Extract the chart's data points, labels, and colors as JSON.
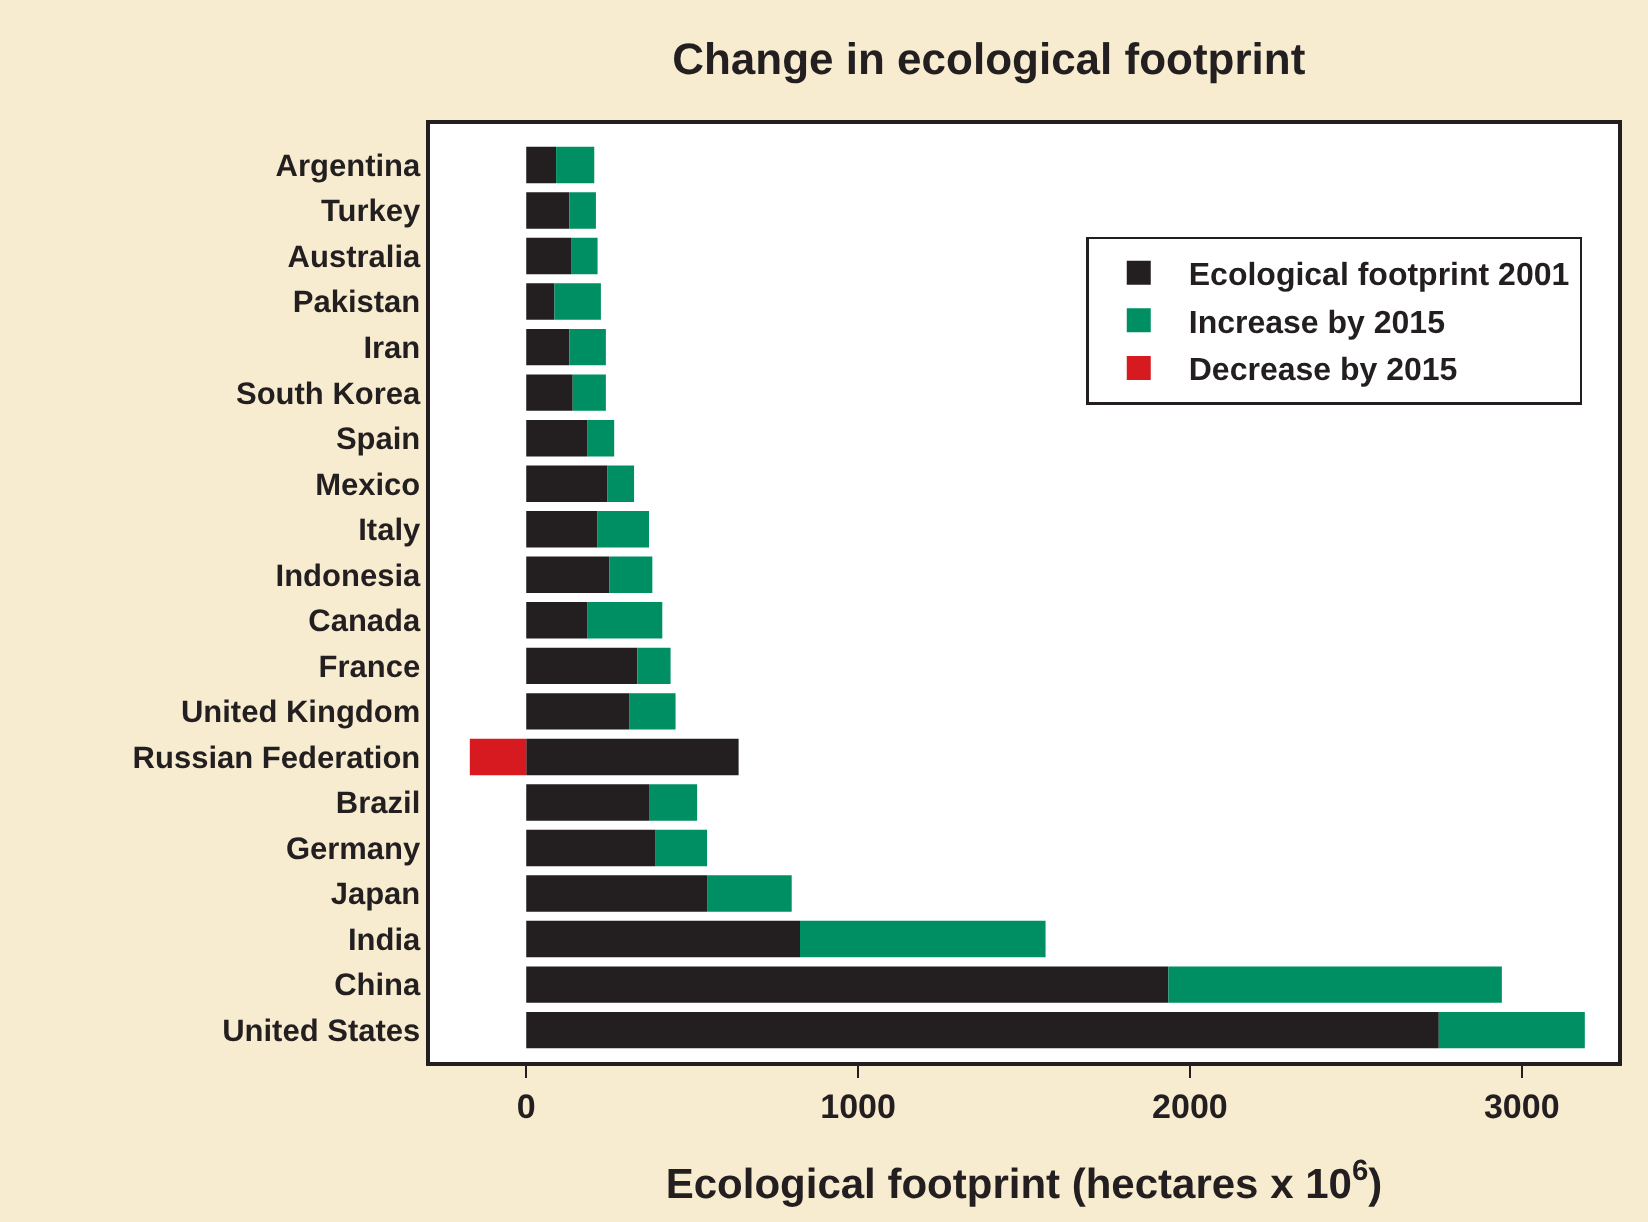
{
  "chart_data": {
    "type": "bar",
    "orientation": "horizontal",
    "stacked": true,
    "title": "Change in ecological footprint",
    "xlabel": "Ecological footprint (hectares x 10$^{6}$)",
    "categories": [
      "Argentina",
      "Turkey",
      "Australia",
      "Pakistan",
      "Iran",
      "South Korea",
      "Spain",
      "Mexico",
      "Italy",
      "Indonesia",
      "Canada",
      "France",
      "United Kingdom",
      "Russian Federation",
      "Brazil",
      "Germany",
      "Japan",
      "India",
      "China",
      "United States"
    ],
    "series": [
      {
        "name": "Ecological footprint 2001",
        "color": "#231f20",
        "values": [
          90,
          130,
          135,
          85,
          130,
          140,
          185,
          245,
          215,
          250,
          185,
          335,
          310,
          640,
          370,
          390,
          545,
          825,
          1935,
          2750
        ]
      },
      {
        "name": "Increase by 2015",
        "color": "#008f62",
        "values": [
          115,
          80,
          80,
          140,
          110,
          100,
          80,
          80,
          155,
          130,
          225,
          100,
          140,
          null,
          145,
          155,
          255,
          740,
          1005,
          440
        ]
      },
      {
        "name": "Decrease by 2015",
        "color": "#d71920",
        "values": [
          null,
          null,
          null,
          null,
          null,
          null,
          null,
          null,
          null,
          null,
          null,
          null,
          null,
          -170,
          null,
          null,
          null,
          null,
          null,
          null
        ]
      }
    ],
    "xlim": [
      -290,
      3290
    ],
    "xticks": [
      0,
      1000,
      2000,
      3000
    ],
    "legend": "top right"
  }
}
